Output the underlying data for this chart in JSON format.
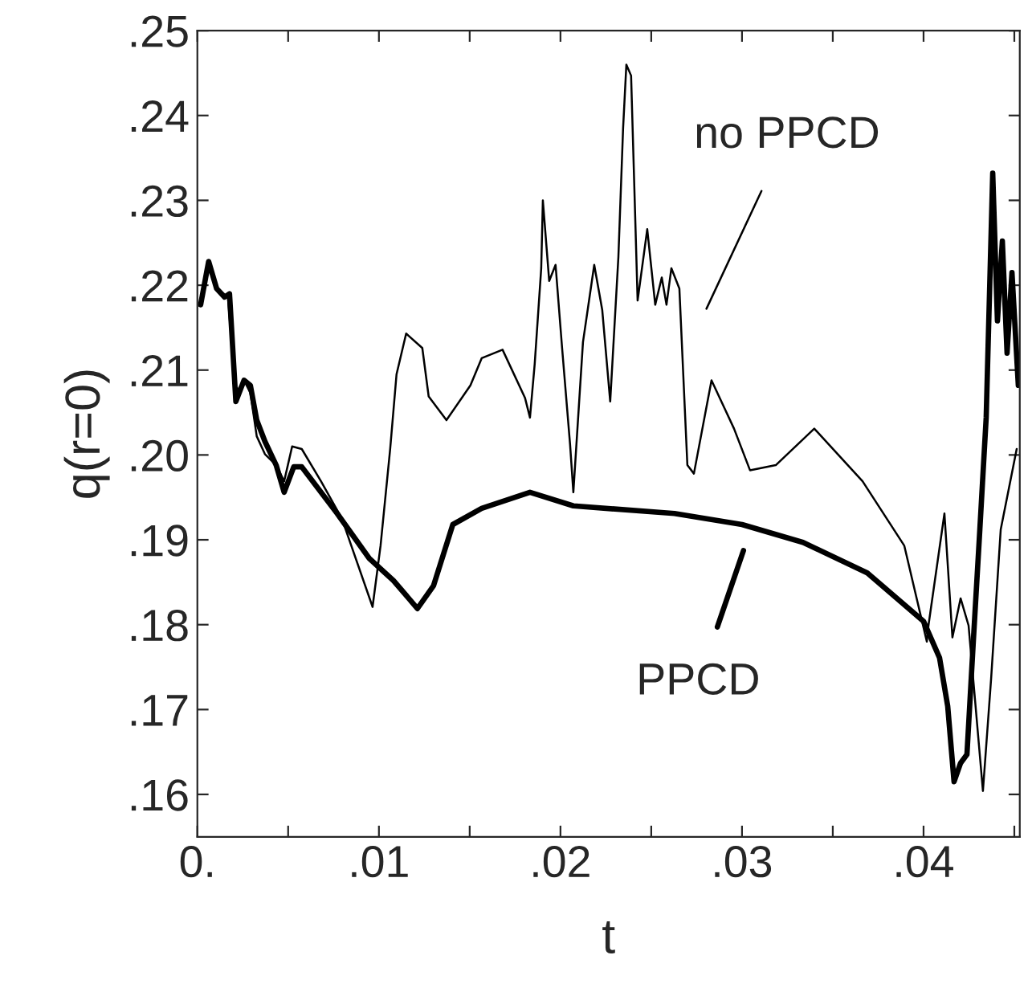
{
  "chart_data": {
    "type": "line",
    "xlabel": "t",
    "ylabel": "q(r=0)",
    "grid": false,
    "legend": false,
    "marker": "none",
    "line_style": "solid",
    "xlim": [
      0,
      0.0453
    ],
    "ylim": [
      0.155,
      0.25
    ],
    "xticks": [
      {
        "value": 0,
        "label": "0."
      },
      {
        "value": 0.005,
        "label": null
      },
      {
        "value": 0.01,
        "label": ".01"
      },
      {
        "value": 0.015,
        "label": null
      },
      {
        "value": 0.02,
        "label": ".02"
      },
      {
        "value": 0.025,
        "label": null
      },
      {
        "value": 0.03,
        "label": ".03"
      },
      {
        "value": 0.035,
        "label": null
      },
      {
        "value": 0.04,
        "label": ".04"
      },
      {
        "value": 0.045,
        "label": null
      }
    ],
    "yticks": [
      {
        "value": 0.16,
        "label": ".16"
      },
      {
        "value": 0.17,
        "label": ".17"
      },
      {
        "value": 0.18,
        "label": ".18"
      },
      {
        "value": 0.19,
        "label": ".19"
      },
      {
        "value": 0.2,
        "label": ".20"
      },
      {
        "value": 0.21,
        "label": ".21"
      },
      {
        "value": 0.22,
        "label": ".22"
      },
      {
        "value": 0.23,
        "label": ".23"
      },
      {
        "value": 0.24,
        "label": ".24"
      },
      {
        "value": 0.25,
        "label": ".25"
      }
    ],
    "annotations": [
      "no PPCD",
      "PPCD"
    ],
    "series": [
      {
        "color": "#000000",
        "x": [
          0.00018,
          0.00062,
          0.00106,
          0.00168,
          0.00212,
          0.00257,
          0.00292,
          0.00327,
          0.00372,
          0.00434,
          0.00478,
          0.00522,
          0.00575,
          0.00681,
          0.00796,
          0.00965,
          0.01009,
          0.01062,
          0.01097,
          0.0115,
          0.01239,
          0.01274,
          0.01372,
          0.01504,
          0.01566,
          0.01681,
          0.01805,
          0.01832,
          0.01858,
          0.01894,
          0.01903,
          0.01938,
          0.01973,
          0.02009,
          0.02053,
          0.02071,
          0.02124,
          0.02186,
          0.0223,
          0.02274,
          0.02319,
          0.02345,
          0.02363,
          0.02389,
          0.02425,
          0.02478,
          0.02522,
          0.02558,
          0.02584,
          0.02611,
          0.02655,
          0.02699,
          0.02735,
          0.02832,
          0.02956,
          0.03044,
          0.03186,
          0.03398,
          0.03664,
          0.03894,
          0.04018,
          0.04027,
          0.04115,
          0.04159,
          0.04204,
          0.04248,
          0.04327,
          0.04372,
          0.04425,
          0.04513
        ],
        "values": [
          0.2177,
          0.2228,
          0.2196,
          0.2186,
          0.2073,
          0.2088,
          0.2073,
          0.2022,
          0.2001,
          0.1988,
          0.1969,
          0.201,
          0.2007,
          0.1969,
          0.1925,
          0.1821,
          0.1893,
          0.2007,
          0.2095,
          0.2143,
          0.2126,
          0.2069,
          0.2041,
          0.2082,
          0.2114,
          0.2124,
          0.2067,
          0.2044,
          0.2107,
          0.222,
          0.23,
          0.2205,
          0.2224,
          0.2126,
          0.2012,
          0.1956,
          0.2133,
          0.2224,
          0.2171,
          0.2063,
          0.2233,
          0.2385,
          0.246,
          0.2447,
          0.2182,
          0.2266,
          0.2177,
          0.2209,
          0.2177,
          0.222,
          0.2196,
          0.1988,
          0.1978,
          0.2088,
          0.2031,
          0.1982,
          0.1988,
          0.2031,
          0.1969,
          0.1893,
          0.178,
          0.1799,
          0.1931,
          0.1785,
          0.1831,
          0.1799,
          0.1604,
          0.1736,
          0.1912,
          0.2007
        ]
      },
      {
        "color": "#000000",
        "x": [
          0.00018,
          0.00062,
          0.00106,
          0.0015,
          0.00177,
          0.00212,
          0.00257,
          0.00292,
          0.00327,
          0.00372,
          0.00434,
          0.00478,
          0.00531,
          0.00575,
          0.0077,
          0.00947,
          0.0108,
          0.01212,
          0.01301,
          0.01407,
          0.01566,
          0.01832,
          0.02071,
          0.02628,
          0.03,
          0.03336,
          0.0369,
          0.04,
          0.04088,
          0.04133,
          0.04168,
          0.04204,
          0.04239,
          0.04274,
          0.0431,
          0.04345,
          0.04381,
          0.04407,
          0.04434,
          0.0446,
          0.04487,
          0.04522
        ],
        "values": [
          0.2177,
          0.2228,
          0.2196,
          0.2186,
          0.219,
          0.2063,
          0.2088,
          0.2082,
          0.2041,
          0.2016,
          0.1988,
          0.1956,
          0.1986,
          0.1986,
          0.1931,
          0.1878,
          0.1852,
          0.1819,
          0.1846,
          0.1918,
          0.1937,
          0.1956,
          0.194,
          0.1931,
          0.1918,
          0.1897,
          0.1861,
          0.1804,
          0.1761,
          0.1704,
          0.1615,
          0.1637,
          0.1647,
          0.178,
          0.1912,
          0.2044,
          0.2332,
          0.2158,
          0.2252,
          0.212,
          0.2215,
          0.2082
        ]
      }
    ]
  }
}
